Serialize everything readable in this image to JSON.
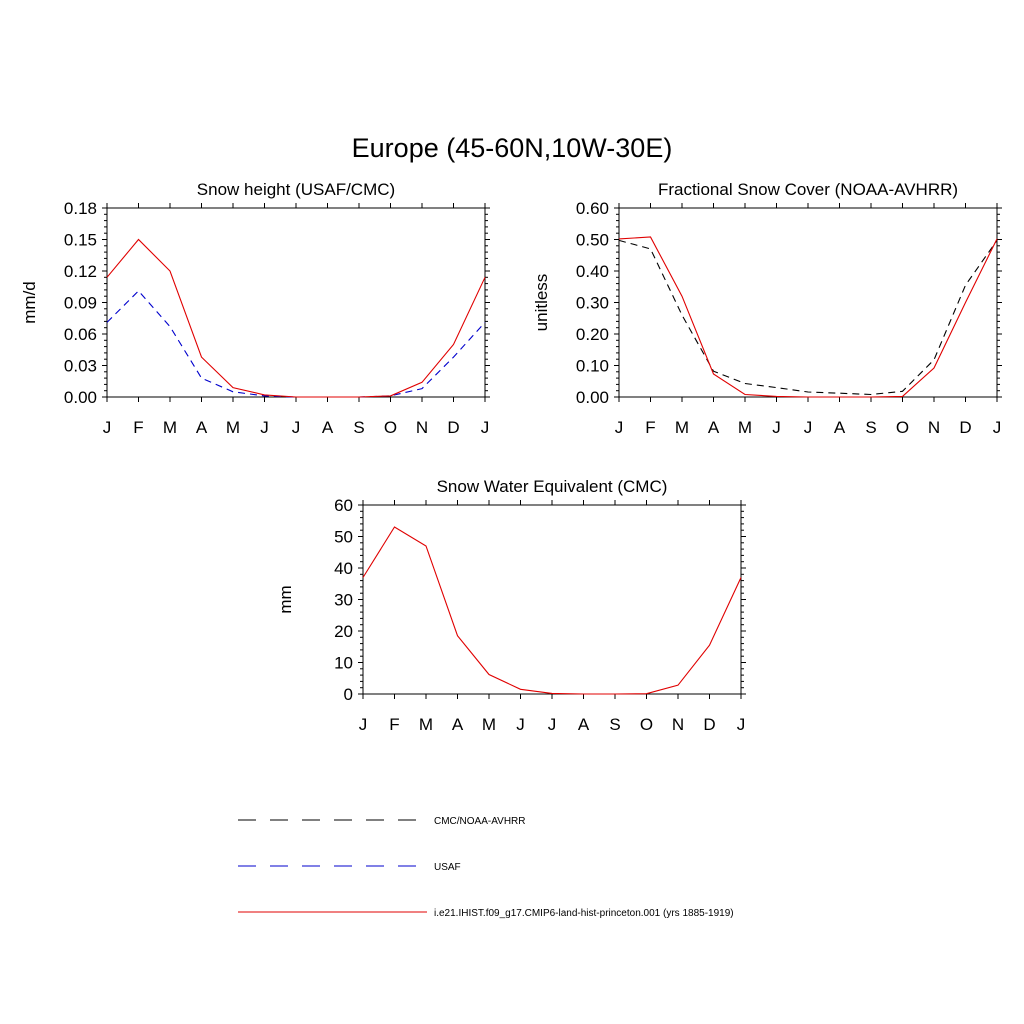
{
  "title": "Europe (45-60N,10W-30E)",
  "chart_data": [
    {
      "type": "line",
      "title": "Snow height (USAF/CMC)",
      "ylabel": "mm/d",
      "xlabel": "",
      "categories": [
        "J",
        "F",
        "M",
        "A",
        "M",
        "J",
        "J",
        "A",
        "S",
        "O",
        "N",
        "D",
        "J"
      ],
      "ylim": [
        0,
        0.18
      ],
      "yticks": [
        "0.00",
        "0.03",
        "0.06",
        "0.09",
        "0.12",
        "0.15",
        "0.18"
      ],
      "series": [
        {
          "key": "cmc",
          "color": "#000000",
          "dash": true,
          "values": [
            0,
            0,
            0,
            0,
            0,
            0,
            0,
            0,
            0,
            0,
            0,
            0,
            0
          ]
        },
        {
          "key": "usaf",
          "color": "#0000cc",
          "dash": true,
          "values": [
            0.071,
            0.101,
            0.067,
            0.018,
            0.005,
            0.001,
            0,
            0,
            0,
            0.001,
            0.008,
            0.038,
            0.071
          ]
        },
        {
          "key": "model",
          "color": "#e00000",
          "dash": false,
          "values": [
            0.114,
            0.15,
            0.12,
            0.038,
            0.009,
            0.002,
            0,
            0,
            0,
            0.001,
            0.014,
            0.05,
            0.114
          ]
        }
      ]
    },
    {
      "type": "line",
      "title": "Fractional Snow Cover (NOAA-AVHRR)",
      "ylabel": "unitless",
      "xlabel": "",
      "categories": [
        "J",
        "F",
        "M",
        "A",
        "M",
        "J",
        "J",
        "A",
        "S",
        "O",
        "N",
        "D",
        "J"
      ],
      "ylim": [
        0,
        0.6
      ],
      "yticks": [
        "0.00",
        "0.10",
        "0.20",
        "0.30",
        "0.40",
        "0.50",
        "0.60"
      ],
      "series": [
        {
          "key": "cmc",
          "color": "#000000",
          "dash": true,
          "values": [
            0.497,
            0.47,
            0.26,
            0.082,
            0.043,
            0.03,
            0.016,
            0.012,
            0.008,
            0.018,
            0.118,
            0.355,
            0.497
          ]
        },
        {
          "key": "model",
          "color": "#e00000",
          "dash": false,
          "values": [
            0.502,
            0.508,
            0.32,
            0.073,
            0.008,
            0.002,
            0,
            0,
            0,
            0.002,
            0.092,
            0.3,
            0.502
          ]
        }
      ]
    },
    {
      "type": "line",
      "title": "Snow Water Equivalent (CMC)",
      "ylabel": "mm",
      "xlabel": "",
      "categories": [
        "J",
        "F",
        "M",
        "A",
        "M",
        "J",
        "J",
        "A",
        "S",
        "O",
        "N",
        "D",
        "J"
      ],
      "ylim": [
        0,
        60
      ],
      "yticks": [
        "0",
        "10",
        "20",
        "30",
        "40",
        "50",
        "60"
      ],
      "series": [
        {
          "key": "cmc",
          "color": "#000000",
          "dash": true,
          "values": [
            0,
            0,
            0,
            0,
            0,
            0,
            0,
            0,
            0,
            0,
            0,
            0,
            0
          ]
        },
        {
          "key": "model",
          "color": "#e00000",
          "dash": false,
          "values": [
            37,
            53,
            47,
            18.5,
            6.2,
            1.5,
            0.2,
            0,
            0,
            0.1,
            2.8,
            15.5,
            37
          ]
        }
      ]
    }
  ],
  "legend": [
    {
      "label": "CMC/NOAA-AVHRR",
      "color": "#000000",
      "dash": true
    },
    {
      "label": "USAF",
      "color": "#0000cc",
      "dash": true
    },
    {
      "label": "i.e21.IHIST.f09_g17.CMIP6-land-hist-princeton.001 (yrs 1885-1919)",
      "color": "#e00000",
      "dash": false
    }
  ]
}
